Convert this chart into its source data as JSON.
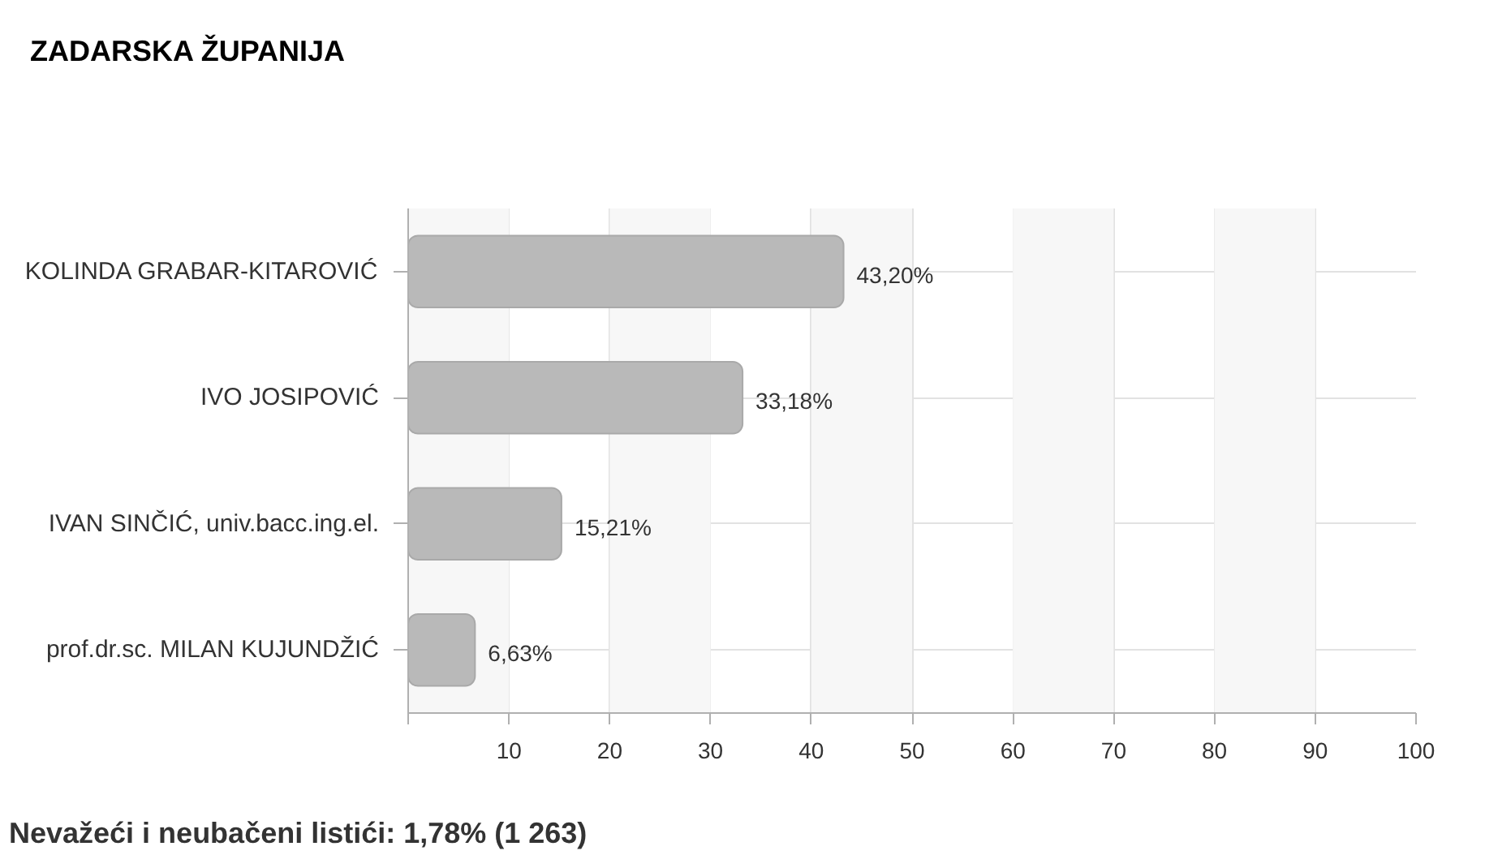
{
  "chart_data": {
    "type": "bar",
    "orientation": "horizontal",
    "title": "ZADARSKA ŽUPANIJA",
    "categories": [
      "KOLINDA GRABAR-KITAROVIĆ",
      "IVO JOSIPOVIĆ",
      "IVAN SINČIĆ, univ.bacc.ing.el.",
      "prof.dr.sc. MILAN KUJUNDŽIĆ"
    ],
    "values": [
      43.2,
      33.18,
      15.21,
      6.63
    ],
    "value_labels": [
      "43,20%",
      "33,18%",
      "15,21%",
      "6,63%"
    ],
    "color": "#b9b9b9",
    "xlim": [
      0,
      100
    ],
    "xticks": [
      {
        "value": 0,
        "label": null
      },
      10,
      20,
      30,
      40,
      50,
      60,
      70,
      80,
      90,
      100
    ],
    "grid": true,
    "annotations": [
      "Nevažeći i neubačeni listići: 1,78% (1 263)"
    ]
  }
}
